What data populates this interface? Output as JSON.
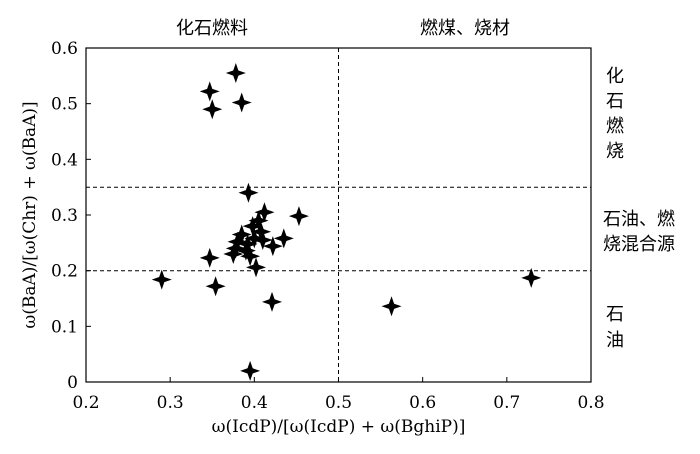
{
  "chart_data": {
    "type": "scatter",
    "title": "",
    "xlabel": "ω(IcdP)/[ω(IcdP) + ω(BghiP)]",
    "ylabel": "ω(BaA)/[ω(Chr) + ω(BaA)]",
    "xlim": [
      0.2,
      0.8
    ],
    "ylim": [
      0,
      0.6
    ],
    "x_ticks": [
      "0.2",
      "0.3",
      "0.4",
      "0.5",
      "0.6",
      "0.7",
      "0.8"
    ],
    "y_ticks": [
      "0",
      "0.1",
      "0.2",
      "0.3",
      "0.4",
      "0.5",
      "0.6"
    ],
    "grid": false,
    "marker": "four-point-star",
    "reference_lines": {
      "vertical_x": [
        0.5
      ],
      "horizontal_y": [
        0.35,
        0.2
      ],
      "style": "dashed"
    },
    "region_labels": {
      "top_left": "化石燃料",
      "top_right": "燃煤、烧材",
      "right_upper": [
        "化",
        "石",
        "燃",
        "烧"
      ],
      "right_middle": [
        "石油、燃",
        "烧混合源"
      ],
      "right_lower": [
        "石",
        "油"
      ]
    },
    "points": [
      {
        "x": 0.378,
        "y": 0.555
      },
      {
        "x": 0.347,
        "y": 0.522
      },
      {
        "x": 0.385,
        "y": 0.502
      },
      {
        "x": 0.35,
        "y": 0.49
      },
      {
        "x": 0.393,
        "y": 0.34
      },
      {
        "x": 0.453,
        "y": 0.298
      },
      {
        "x": 0.412,
        "y": 0.305
      },
      {
        "x": 0.405,
        "y": 0.29
      },
      {
        "x": 0.398,
        "y": 0.28
      },
      {
        "x": 0.408,
        "y": 0.27
      },
      {
        "x": 0.435,
        "y": 0.258
      },
      {
        "x": 0.385,
        "y": 0.265
      },
      {
        "x": 0.4,
        "y": 0.258
      },
      {
        "x": 0.41,
        "y": 0.255
      },
      {
        "x": 0.38,
        "y": 0.252
      },
      {
        "x": 0.392,
        "y": 0.248
      },
      {
        "x": 0.422,
        "y": 0.244
      },
      {
        "x": 0.378,
        "y": 0.24
      },
      {
        "x": 0.39,
        "y": 0.236
      },
      {
        "x": 0.375,
        "y": 0.23
      },
      {
        "x": 0.395,
        "y": 0.226
      },
      {
        "x": 0.347,
        "y": 0.223
      },
      {
        "x": 0.402,
        "y": 0.206
      },
      {
        "x": 0.29,
        "y": 0.184
      },
      {
        "x": 0.354,
        "y": 0.172
      },
      {
        "x": 0.421,
        "y": 0.144
      },
      {
        "x": 0.563,
        "y": 0.136
      },
      {
        "x": 0.729,
        "y": 0.187
      },
      {
        "x": 0.395,
        "y": 0.02
      }
    ]
  }
}
